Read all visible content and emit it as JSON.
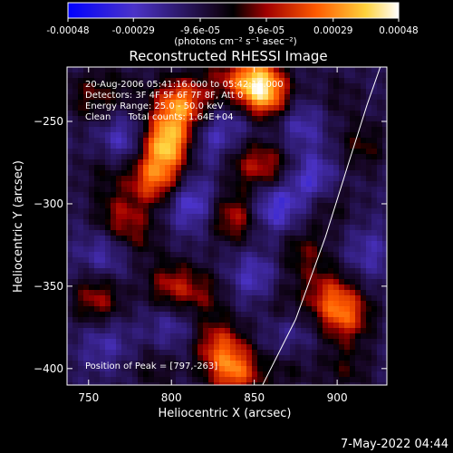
{
  "colorbar": {
    "tick_labels": [
      "-0.00048",
      "-0.00029",
      "-9.6e-05",
      "9.6e-05",
      "0.00029",
      "0.00048"
    ],
    "unit_label": "(photons cm⁻² s⁻¹ asec⁻²)",
    "range": [
      -0.00048,
      0.00048
    ]
  },
  "plot": {
    "title": "Reconstructed RHESSI Image",
    "xlabel": "Heliocentric X (arcsec)",
    "ylabel": "Heliocentric Y (arcsec)",
    "info": {
      "time_range": "20-Aug-2006 05:41:16.000 to 05:42:16.000",
      "detectors": "Detectors: 3F 4F 5F 6F 7F 8F, Att 0",
      "energy": "Energy Range: 25.0 - 50.0 keV",
      "clean": "Clean      Total counts: 1.64E+04"
    },
    "peak": "Position of Peak = [797,-263]"
  },
  "timestamp": "7-May-2022 04:44",
  "chart_data": {
    "type": "heatmap",
    "title": "Reconstructed RHESSI Image",
    "xlabel": "Heliocentric X (arcsec)",
    "ylabel": "Heliocentric Y (arcsec)",
    "xlim": [
      737,
      930
    ],
    "ylim": [
      -410,
      -217
    ],
    "x_ticks": [
      750,
      800,
      850,
      900
    ],
    "y_ticks": [
      -250,
      -300,
      -350,
      -400
    ],
    "colorbar_range": [
      -0.00048,
      0.00048
    ],
    "peak_position": [
      797,
      -263
    ],
    "limb_curve": [
      [
        855,
        -410
      ],
      [
        875,
        -370
      ],
      [
        893,
        -320
      ],
      [
        907,
        -275
      ],
      [
        918,
        -240
      ],
      [
        926,
        -217
      ]
    ],
    "sources": [
      {
        "x": 797,
        "y": -263,
        "value": 0.00048
      },
      {
        "x": 805,
        "y": -240,
        "value": 0.0004
      },
      {
        "x": 790,
        "y": -285,
        "value": 0.00035
      },
      {
        "x": 850,
        "y": -225,
        "value": 0.00038
      },
      {
        "x": 857,
        "y": -235,
        "value": 0.00032
      },
      {
        "x": 838,
        "y": -402,
        "value": 0.00035
      },
      {
        "x": 828,
        "y": -385,
        "value": 0.00025
      },
      {
        "x": 905,
        "y": -368,
        "value": 0.0003
      },
      {
        "x": 895,
        "y": -355,
        "value": 0.00022
      },
      {
        "x": 755,
        "y": -358,
        "value": 0.00022
      },
      {
        "x": 800,
        "y": -350,
        "value": 0.00022
      },
      {
        "x": 838,
        "y": -308,
        "value": 0.00025
      },
      {
        "x": 768,
        "y": -308,
        "value": 0.00018
      },
      {
        "x": 860,
        "y": -278,
        "value": 0.00018
      },
      {
        "x": 845,
        "y": -275,
        "value": 0.00014
      },
      {
        "x": 880,
        "y": -330,
        "value": 0.00016
      },
      {
        "x": 750,
        "y": -235,
        "value": 0.00014
      },
      {
        "x": 915,
        "y": -265,
        "value": 0.00014
      },
      {
        "x": 905,
        "y": -400,
        "value": 0.00012
      },
      {
        "x": 790,
        "y": -400,
        "value": 0.0001
      },
      {
        "x": 870,
        "y": -400,
        "value": 0.0001
      },
      {
        "x": 895,
        "y": -300,
        "value": 0.00012
      },
      {
        "x": 760,
        "y": -280,
        "value": 0.0001
      },
      {
        "x": 780,
        "y": -320,
        "value": 0.00012
      },
      {
        "x": 820,
        "y": -355,
        "value": 0.00014
      },
      {
        "x": 865,
        "y": -360,
        "value": 0.0001
      },
      {
        "x": 828,
        "y": -225,
        "value": 0.00012
      },
      {
        "x": 770,
        "y": -230,
        "value": 8e-05
      },
      {
        "x": 900,
        "y": -235,
        "value": 8e-05
      },
      {
        "x": 862,
        "y": -302,
        "value": -0.00022
      },
      {
        "x": 812,
        "y": -300,
        "value": -0.0002
      },
      {
        "x": 772,
        "y": -262,
        "value": -0.00018
      },
      {
        "x": 885,
        "y": -285,
        "value": -0.0002
      },
      {
        "x": 760,
        "y": -330,
        "value": -0.00014
      },
      {
        "x": 822,
        "y": -262,
        "value": -0.00014
      },
      {
        "x": 850,
        "y": -345,
        "value": -0.00016
      },
      {
        "x": 878,
        "y": -252,
        "value": -0.00014
      },
      {
        "x": 800,
        "y": -375,
        "value": -0.00012
      },
      {
        "x": 760,
        "y": -385,
        "value": -0.00012
      },
      {
        "x": 870,
        "y": -380,
        "value": -0.0001
      },
      {
        "x": 920,
        "y": -330,
        "value": -0.00012
      },
      {
        "x": 840,
        "y": -250,
        "value": -0.0001
      }
    ]
  }
}
